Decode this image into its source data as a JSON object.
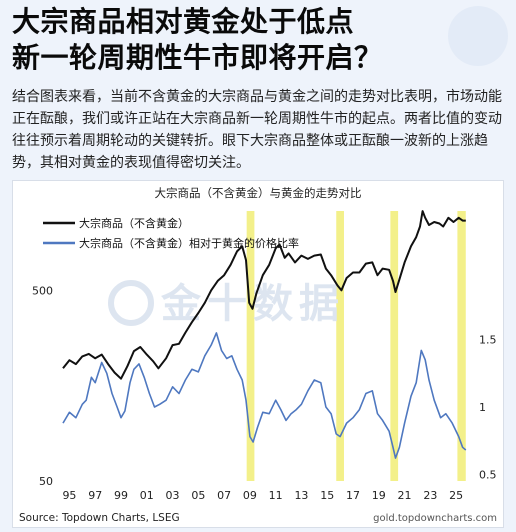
{
  "header": {
    "title_line1": "大宗商品相对黄金处于低点",
    "title_line2": "新一轮周期性牛市即将开启？"
  },
  "body_text": "结合图表来看，当前不含黄金的大宗商品与黄金之间的走势对比表明，市场动能正在酝酿，我们或许正站在大宗商品新一轮周期性牛市的起点。两者比值的变动往往预示着周期轮动的关键转折。眼下大宗商品整体或正酝酿一波新的上涨趋势，其相对黄金的表现值得密切关注。",
  "colors": {
    "black_series": "#111111",
    "blue_series": "#4f78c0",
    "highlight": "#f3f08a",
    "watermark": "#dde5f0"
  },
  "chart_data": {
    "type": "line",
    "title": "大宗商品（不含黄金）与黄金的走势对比",
    "source": "Source: Topdown Charts, LSEG",
    "site": "gold.topdowncharts.com",
    "watermark_text": "金十数据",
    "x_ticks": [
      "95",
      "97",
      "99",
      "01",
      "03",
      "05",
      "07",
      "09",
      "11",
      "13",
      "15",
      "17",
      "19",
      "21",
      "23",
      "25"
    ],
    "x_range": [
      1994.5,
      2026.0
    ],
    "left_axis": {
      "scale": "log",
      "range": [
        50,
        1400
      ],
      "ticks": [
        "500",
        "50"
      ],
      "tick_values": [
        500,
        50
      ]
    },
    "right_axis": {
      "scale": "linear",
      "range": [
        0.45,
        2.5
      ],
      "ticks": [
        "1.5",
        "1",
        "0.5"
      ],
      "tick_values": [
        1.5,
        1.0,
        0.5
      ]
    },
    "highlight_periods": [
      [
        2008.75,
        2009.35
      ],
      [
        2015.7,
        2016.3
      ],
      [
        2019.9,
        2020.5
      ],
      [
        2025.1,
        2025.75
      ]
    ],
    "series": [
      {
        "name": "大宗商品（不含黄金）",
        "axis": "left",
        "color": "#111111",
        "points": [
          [
            1994.5,
            195
          ],
          [
            1995.0,
            215
          ],
          [
            1995.5,
            205
          ],
          [
            1996.0,
            225
          ],
          [
            1996.5,
            232
          ],
          [
            1997.0,
            220
          ],
          [
            1997.5,
            230
          ],
          [
            1998.0,
            205
          ],
          [
            1998.5,
            185
          ],
          [
            1999.0,
            172
          ],
          [
            1999.5,
            200
          ],
          [
            2000.0,
            240
          ],
          [
            2000.5,
            252
          ],
          [
            2001.0,
            230
          ],
          [
            2001.5,
            212
          ],
          [
            2001.9,
            195
          ],
          [
            2002.5,
            220
          ],
          [
            2003.0,
            258
          ],
          [
            2003.5,
            262
          ],
          [
            2004.0,
            300
          ],
          [
            2004.5,
            340
          ],
          [
            2005.0,
            380
          ],
          [
            2005.5,
            430
          ],
          [
            2006.0,
            500
          ],
          [
            2006.5,
            560
          ],
          [
            2007.0,
            600
          ],
          [
            2007.5,
            680
          ],
          [
            2008.0,
            800
          ],
          [
            2008.4,
            850
          ],
          [
            2008.7,
            720
          ],
          [
            2008.95,
            430
          ],
          [
            2009.2,
            400
          ],
          [
            2009.5,
            480
          ],
          [
            2010.0,
            600
          ],
          [
            2010.5,
            680
          ],
          [
            2011.0,
            830
          ],
          [
            2011.3,
            870
          ],
          [
            2011.7,
            740
          ],
          [
            2012.0,
            780
          ],
          [
            2012.5,
            700
          ],
          [
            2013.0,
            760
          ],
          [
            2013.5,
            730
          ],
          [
            2014.0,
            760
          ],
          [
            2014.5,
            770
          ],
          [
            2014.9,
            650
          ],
          [
            2015.3,
            600
          ],
          [
            2015.8,
            530
          ],
          [
            2016.1,
            500
          ],
          [
            2016.5,
            580
          ],
          [
            2017.0,
            620
          ],
          [
            2017.5,
            620
          ],
          [
            2018.0,
            690
          ],
          [
            2018.5,
            700
          ],
          [
            2018.9,
            600
          ],
          [
            2019.3,
            650
          ],
          [
            2019.8,
            640
          ],
          [
            2020.1,
            560
          ],
          [
            2020.3,
            490
          ],
          [
            2020.6,
            570
          ],
          [
            2021.0,
            700
          ],
          [
            2021.5,
            850
          ],
          [
            2021.9,
            950
          ],
          [
            2022.2,
            1080
          ],
          [
            2022.4,
            1300
          ],
          [
            2022.6,
            1200
          ],
          [
            2022.9,
            1100
          ],
          [
            2023.3,
            1140
          ],
          [
            2023.7,
            1120
          ],
          [
            2024.0,
            1080
          ],
          [
            2024.4,
            1200
          ],
          [
            2024.8,
            1140
          ],
          [
            2025.2,
            1200
          ],
          [
            2025.5,
            1160
          ],
          [
            2025.75,
            1160
          ]
        ]
      },
      {
        "name": "大宗商品（不含黄金）相对于黄金的价格比率",
        "axis": "right",
        "color": "#4f78c0",
        "points": [
          [
            1994.5,
            0.88
          ],
          [
            1995.0,
            0.96
          ],
          [
            1995.5,
            0.92
          ],
          [
            1996.0,
            1.02
          ],
          [
            1996.3,
            1.05
          ],
          [
            1996.7,
            1.22
          ],
          [
            1997.0,
            1.18
          ],
          [
            1997.5,
            1.33
          ],
          [
            1997.9,
            1.25
          ],
          [
            1998.3,
            1.1
          ],
          [
            1998.7,
            1.0
          ],
          [
            1999.0,
            0.92
          ],
          [
            1999.3,
            0.97
          ],
          [
            1999.7,
            1.18
          ],
          [
            2000.0,
            1.28
          ],
          [
            2000.4,
            1.32
          ],
          [
            2000.8,
            1.22
          ],
          [
            2001.2,
            1.1
          ],
          [
            2001.6,
            1.0
          ],
          [
            2002.0,
            1.02
          ],
          [
            2002.5,
            1.05
          ],
          [
            2003.0,
            1.15
          ],
          [
            2003.5,
            1.1
          ],
          [
            2004.0,
            1.2
          ],
          [
            2004.5,
            1.28
          ],
          [
            2005.0,
            1.26
          ],
          [
            2005.5,
            1.38
          ],
          [
            2006.0,
            1.46
          ],
          [
            2006.4,
            1.55
          ],
          [
            2006.8,
            1.42
          ],
          [
            2007.2,
            1.36
          ],
          [
            2007.6,
            1.38
          ],
          [
            2008.0,
            1.28
          ],
          [
            2008.4,
            1.2
          ],
          [
            2008.7,
            1.05
          ],
          [
            2009.0,
            0.78
          ],
          [
            2009.25,
            0.74
          ],
          [
            2009.6,
            0.85
          ],
          [
            2010.0,
            0.96
          ],
          [
            2010.5,
            0.95
          ],
          [
            2011.0,
            1.05
          ],
          [
            2011.4,
            0.98
          ],
          [
            2011.8,
            0.9
          ],
          [
            2012.2,
            0.95
          ],
          [
            2012.6,
            0.98
          ],
          [
            2013.0,
            1.02
          ],
          [
            2013.5,
            1.12
          ],
          [
            2014.0,
            1.2
          ],
          [
            2014.5,
            1.18
          ],
          [
            2014.9,
            1.0
          ],
          [
            2015.3,
            0.95
          ],
          [
            2015.7,
            0.8
          ],
          [
            2016.0,
            0.78
          ],
          [
            2016.5,
            0.88
          ],
          [
            2017.0,
            0.92
          ],
          [
            2017.5,
            0.98
          ],
          [
            2018.0,
            1.1
          ],
          [
            2018.5,
            1.12
          ],
          [
            2018.9,
            0.95
          ],
          [
            2019.3,
            0.9
          ],
          [
            2019.8,
            0.82
          ],
          [
            2020.1,
            0.7
          ],
          [
            2020.3,
            0.62
          ],
          [
            2020.6,
            0.7
          ],
          [
            2021.0,
            0.88
          ],
          [
            2021.5,
            1.08
          ],
          [
            2021.9,
            1.18
          ],
          [
            2022.3,
            1.42
          ],
          [
            2022.6,
            1.35
          ],
          [
            2022.9,
            1.2
          ],
          [
            2023.3,
            1.05
          ],
          [
            2023.8,
            0.92
          ],
          [
            2024.2,
            0.95
          ],
          [
            2024.7,
            0.88
          ],
          [
            2025.2,
            0.78
          ],
          [
            2025.5,
            0.7
          ],
          [
            2025.75,
            0.68
          ]
        ]
      }
    ],
    "grid": false,
    "legend_position": "top-left"
  }
}
